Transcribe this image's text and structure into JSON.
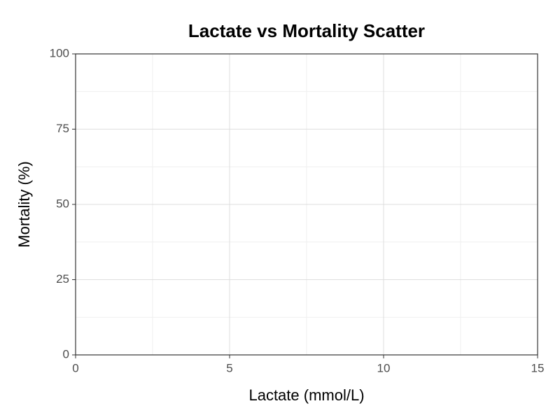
{
  "chart_data": {
    "type": "scatter",
    "title": "Lactate vs Mortality Scatter",
    "x_label": "Lactate (mmol/L)",
    "y_label": "Mortality (%)",
    "xlim": [
      0,
      15
    ],
    "xticks": [
      0,
      5,
      10,
      15
    ],
    "ylim": [
      0,
      100
    ],
    "yticks": [
      0,
      25,
      50,
      75,
      100
    ],
    "grid": true,
    "minor_grid": true
  }
}
